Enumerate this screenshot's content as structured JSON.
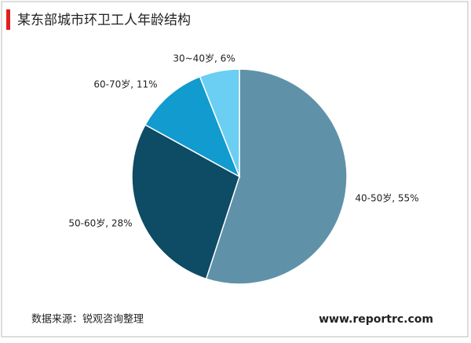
{
  "chart_data": {
    "type": "pie",
    "title": "某东部城市环卫工人年龄结构",
    "values": [
      55,
      28,
      11,
      6
    ],
    "value_labels": [
      "40-50岁, 55%",
      "50-60岁, 28%",
      "60-70岁, 11%",
      "30~40岁, 6%"
    ],
    "colors": [
      "#5f92a9",
      "#0e4b64",
      "#129bcf",
      "#6acff3"
    ],
    "source": "数据来源：锐观咨询整理",
    "website": "www.reportrc.com"
  }
}
